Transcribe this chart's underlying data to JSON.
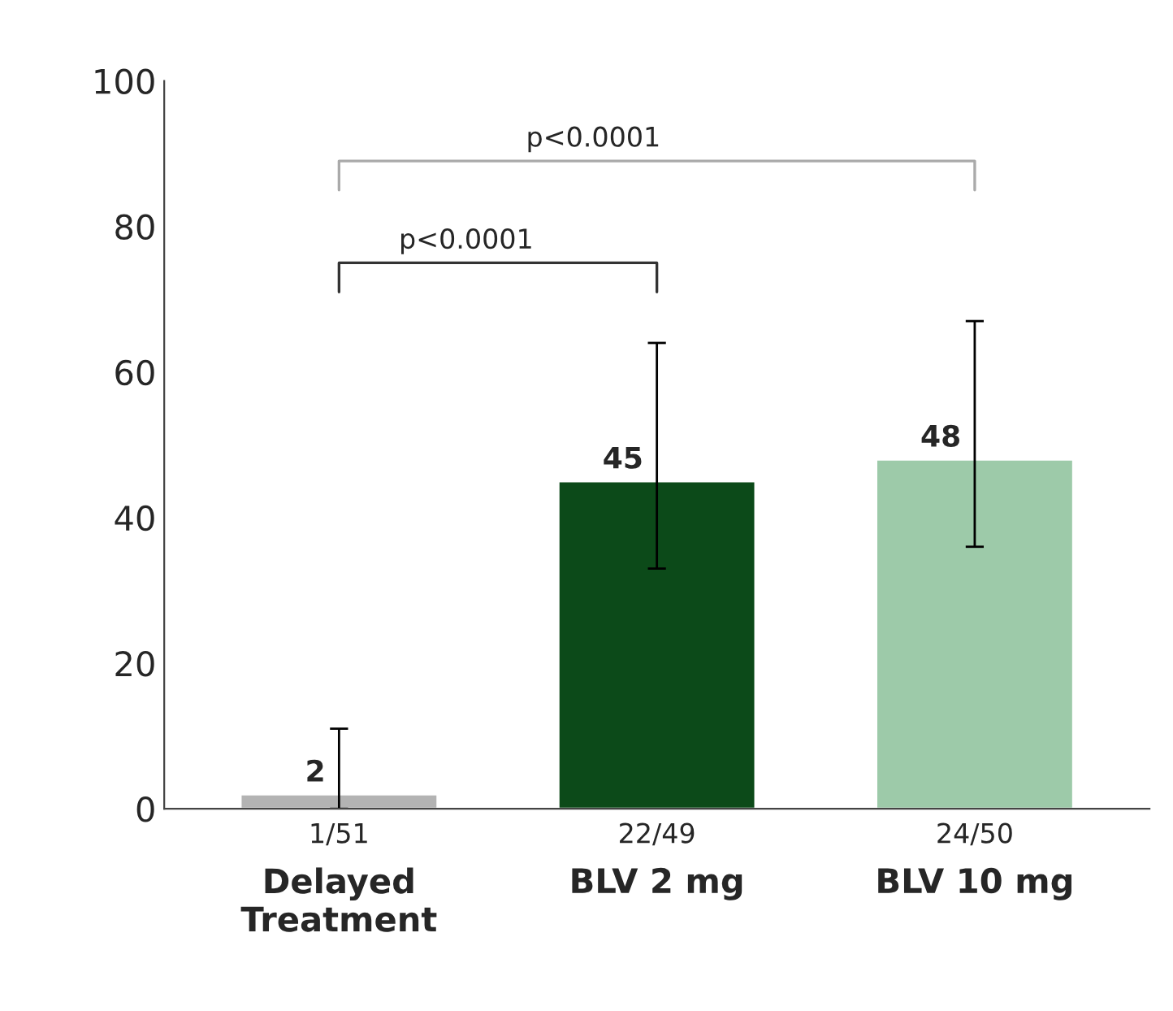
{
  "chart_data": {
    "type": "bar",
    "categories": [
      "Delayed\nTreatment",
      "BLV 2 mg",
      "BLV 10 mg"
    ],
    "values": [
      2,
      45,
      48
    ],
    "colors": [
      "#b3b3b3",
      "#0c4a19",
      "#9dcaa9"
    ],
    "errors": [
      [
        0,
        11
      ],
      [
        33,
        64
      ],
      [
        36,
        67
      ]
    ],
    "data_labels": true,
    "ylim": [
      0,
      100
    ],
    "yticks": [
      0,
      20,
      40,
      60,
      80,
      100
    ],
    "grid": false,
    "legend": false,
    "annotations": [
      "1/51",
      "22/49",
      "24/50",
      "p<0.0001",
      "p<0.0001"
    ]
  }
}
